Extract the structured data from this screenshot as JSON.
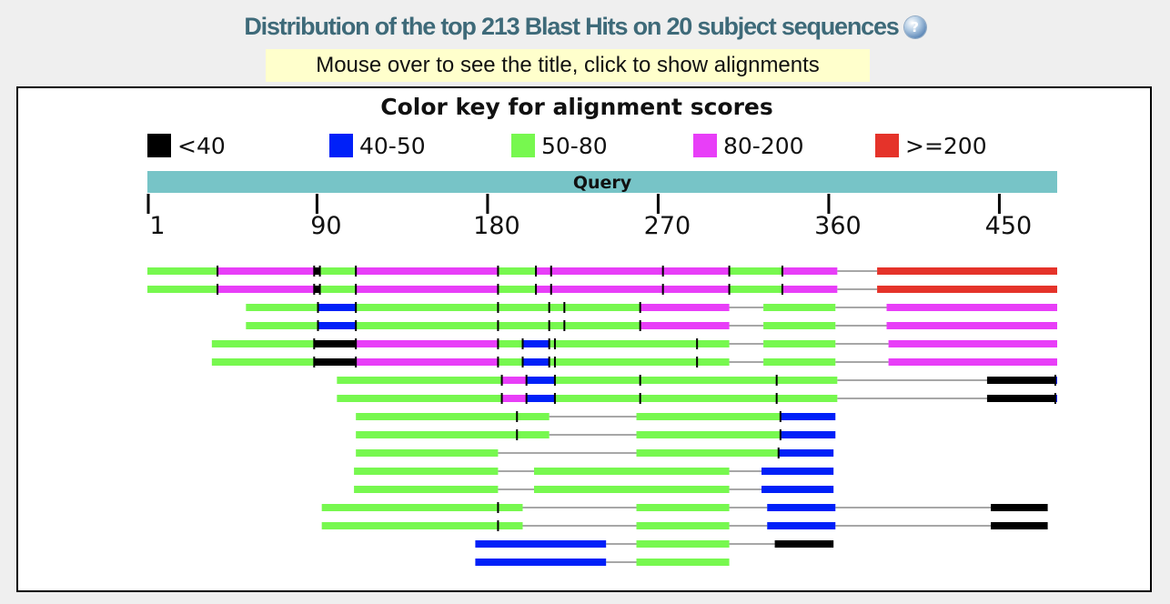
{
  "page": {
    "title": "Distribution of the top 213 Blast Hits on 20 subject sequences",
    "help_icon": "help-icon",
    "hint": "Mouse over to see the title, click to show alignments"
  },
  "graphic": {
    "key_title": "Color key for alignment scores",
    "legend": [
      {
        "label": "<40",
        "color": "#000000"
      },
      {
        "label": "40-50",
        "color": "#0020f8"
      },
      {
        "label": "50-80",
        "color": "#77f84f"
      },
      {
        "label": "80-200",
        "color": "#e83ef8"
      },
      {
        "label": ">=200",
        "color": "#e5332a"
      }
    ],
    "query_label": "Query",
    "query_length": 480,
    "ticks": [
      {
        "label": "1",
        "value": 1
      },
      {
        "label": "90",
        "value": 90
      },
      {
        "label": "180",
        "value": 180
      },
      {
        "label": "270",
        "value": 270
      },
      {
        "label": "360",
        "value": 360
      },
      {
        "label": "450",
        "value": 450
      }
    ],
    "hits": [
      {
        "segments": [
          [
            0,
            37,
            "green"
          ],
          [
            37,
            88,
            "magenta"
          ],
          [
            88,
            91,
            "black"
          ],
          [
            91,
            110,
            "green"
          ],
          [
            110,
            185,
            "magenta"
          ],
          [
            185,
            205,
            "green"
          ],
          [
            205,
            213,
            "magenta"
          ],
          [
            213,
            272,
            "magenta"
          ],
          [
            272,
            307,
            "magenta"
          ],
          [
            307,
            335,
            "green"
          ],
          [
            335,
            364,
            "magenta"
          ],
          [
            385,
            480,
            "red"
          ]
        ]
      },
      {
        "segments": [
          [
            0,
            37,
            "green"
          ],
          [
            37,
            88,
            "magenta"
          ],
          [
            88,
            91,
            "black"
          ],
          [
            91,
            110,
            "green"
          ],
          [
            110,
            185,
            "magenta"
          ],
          [
            185,
            205,
            "green"
          ],
          [
            205,
            213,
            "magenta"
          ],
          [
            213,
            272,
            "magenta"
          ],
          [
            272,
            307,
            "magenta"
          ],
          [
            307,
            335,
            "green"
          ],
          [
            335,
            364,
            "magenta"
          ],
          [
            385,
            480,
            "red"
          ]
        ]
      },
      {
        "segments": [
          [
            52,
            90,
            "green"
          ],
          [
            90,
            110,
            "blue"
          ],
          [
            110,
            185,
            "green"
          ],
          [
            185,
            212,
            "green"
          ],
          [
            212,
            220,
            "green"
          ],
          [
            220,
            260,
            "green"
          ],
          [
            260,
            307,
            "magenta"
          ],
          [
            325,
            363,
            "green"
          ],
          [
            390,
            480,
            "magenta"
          ]
        ]
      },
      {
        "segments": [
          [
            52,
            90,
            "green"
          ],
          [
            90,
            110,
            "blue"
          ],
          [
            110,
            185,
            "green"
          ],
          [
            185,
            212,
            "green"
          ],
          [
            212,
            220,
            "green"
          ],
          [
            220,
            260,
            "green"
          ],
          [
            260,
            307,
            "magenta"
          ],
          [
            325,
            363,
            "green"
          ],
          [
            390,
            480,
            "magenta"
          ]
        ]
      },
      {
        "segments": [
          [
            34,
            88,
            "green"
          ],
          [
            88,
            110,
            "black"
          ],
          [
            110,
            185,
            "magenta"
          ],
          [
            185,
            198,
            "green"
          ],
          [
            198,
            212,
            "blue"
          ],
          [
            212,
            215,
            "green"
          ],
          [
            215,
            290,
            "green"
          ],
          [
            290,
            307,
            "green"
          ],
          [
            325,
            363,
            "green"
          ],
          [
            391,
            480,
            "magenta"
          ]
        ]
      },
      {
        "segments": [
          [
            34,
            88,
            "green"
          ],
          [
            88,
            110,
            "black"
          ],
          [
            110,
            185,
            "magenta"
          ],
          [
            185,
            198,
            "green"
          ],
          [
            198,
            212,
            "blue"
          ],
          [
            212,
            215,
            "green"
          ],
          [
            215,
            290,
            "green"
          ],
          [
            290,
            307,
            "green"
          ],
          [
            325,
            363,
            "green"
          ],
          [
            391,
            480,
            "magenta"
          ]
        ]
      },
      {
        "segments": [
          [
            100,
            187,
            "green"
          ],
          [
            187,
            200,
            "magenta"
          ],
          [
            200,
            215,
            "blue"
          ],
          [
            215,
            260,
            "green"
          ],
          [
            260,
            332,
            "green"
          ],
          [
            332,
            364,
            "green"
          ],
          [
            443,
            479,
            "black"
          ],
          [
            479,
            480,
            "blue"
          ]
        ]
      },
      {
        "segments": [
          [
            100,
            187,
            "green"
          ],
          [
            187,
            200,
            "magenta"
          ],
          [
            200,
            215,
            "blue"
          ],
          [
            215,
            260,
            "green"
          ],
          [
            260,
            332,
            "green"
          ],
          [
            332,
            364,
            "green"
          ],
          [
            443,
            479,
            "black"
          ],
          [
            479,
            480,
            "blue"
          ]
        ]
      },
      {
        "segments": [
          [
            110,
            195,
            "green"
          ],
          [
            195,
            212,
            "green"
          ],
          [
            258,
            334,
            "green"
          ],
          [
            334,
            363,
            "blue"
          ]
        ]
      },
      {
        "segments": [
          [
            110,
            195,
            "green"
          ],
          [
            195,
            212,
            "green"
          ],
          [
            258,
            334,
            "green"
          ],
          [
            334,
            363,
            "blue"
          ]
        ]
      },
      {
        "segments": [
          [
            110,
            185,
            "green"
          ],
          [
            258,
            333,
            "green"
          ],
          [
            333,
            362,
            "blue"
          ]
        ]
      },
      {
        "segments": [
          [
            109,
            185,
            "green"
          ],
          [
            204,
            307,
            "green"
          ],
          [
            324,
            362,
            "blue"
          ]
        ]
      },
      {
        "segments": [
          [
            109,
            185,
            "green"
          ],
          [
            204,
            307,
            "green"
          ],
          [
            324,
            362,
            "blue"
          ]
        ]
      },
      {
        "segments": [
          [
            92,
            185,
            "green"
          ],
          [
            185,
            198,
            "green"
          ],
          [
            258,
            307,
            "green"
          ],
          [
            327,
            363,
            "blue"
          ],
          [
            445,
            475,
            "black"
          ]
        ]
      },
      {
        "segments": [
          [
            92,
            185,
            "green"
          ],
          [
            185,
            198,
            "green"
          ],
          [
            258,
            307,
            "green"
          ],
          [
            327,
            363,
            "blue"
          ],
          [
            445,
            475,
            "black"
          ]
        ]
      },
      {
        "segments": [
          [
            173,
            242,
            "blue"
          ],
          [
            258,
            307,
            "green"
          ],
          [
            331,
            362,
            "black"
          ]
        ]
      },
      {
        "segments": [
          [
            173,
            242,
            "blue"
          ],
          [
            258,
            307,
            "green"
          ]
        ]
      }
    ]
  }
}
